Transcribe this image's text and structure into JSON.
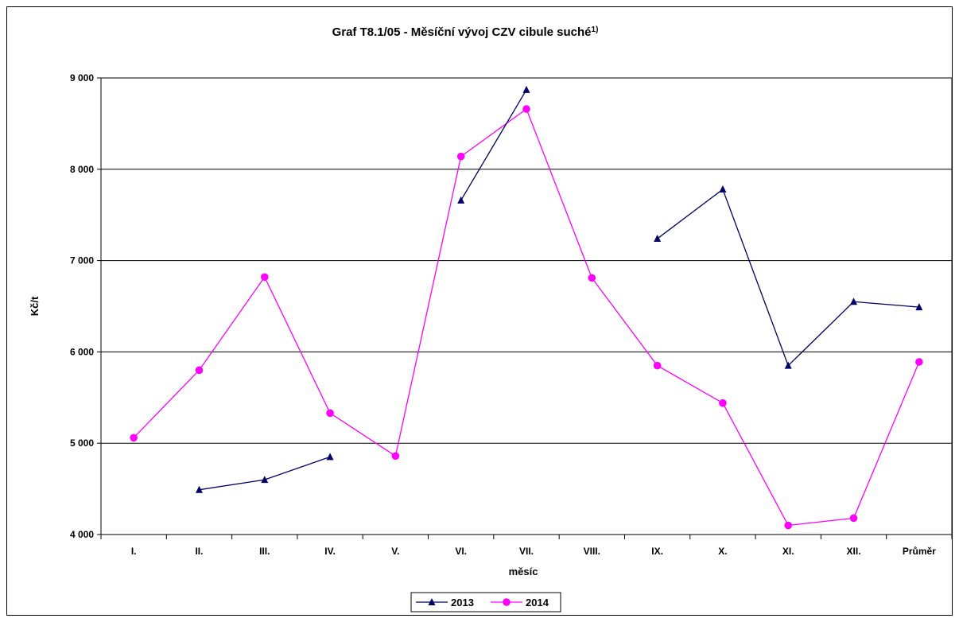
{
  "chart_data": {
    "type": "line",
    "title": "Graf T8.1/05 - Měsíční vývoj CZV cibule suché",
    "title_superscript": "1)",
    "xlabel": "měsíc",
    "ylabel": "Kč/t",
    "ylim": [
      4000,
      9000
    ],
    "y_ticks": [
      4000,
      5000,
      6000,
      7000,
      8000,
      9000
    ],
    "y_tick_labels": [
      "4 000",
      "5 000",
      "6 000",
      "7 000",
      "8 000",
      "9 000"
    ],
    "grid": "horizontal",
    "legend_position": "bottom-center",
    "categories": [
      "I.",
      "II.",
      "III.",
      "IV.",
      "V.",
      "VI.",
      "VII.",
      "VIII.",
      "IX.",
      "X.",
      "XI.",
      "XII.",
      "Průměr"
    ],
    "series": [
      {
        "name": "2013",
        "color": "#000066",
        "marker": "triangle",
        "values": [
          null,
          4490,
          4600,
          4850,
          null,
          7660,
          8870,
          null,
          7240,
          7780,
          5850,
          6550,
          6490
        ]
      },
      {
        "name": "2014",
        "color": "#ff00ff",
        "marker": "circle",
        "values": [
          5060,
          5800,
          6820,
          5330,
          4860,
          8140,
          8660,
          6810,
          5850,
          5440,
          4100,
          4180,
          5890
        ]
      }
    ]
  }
}
